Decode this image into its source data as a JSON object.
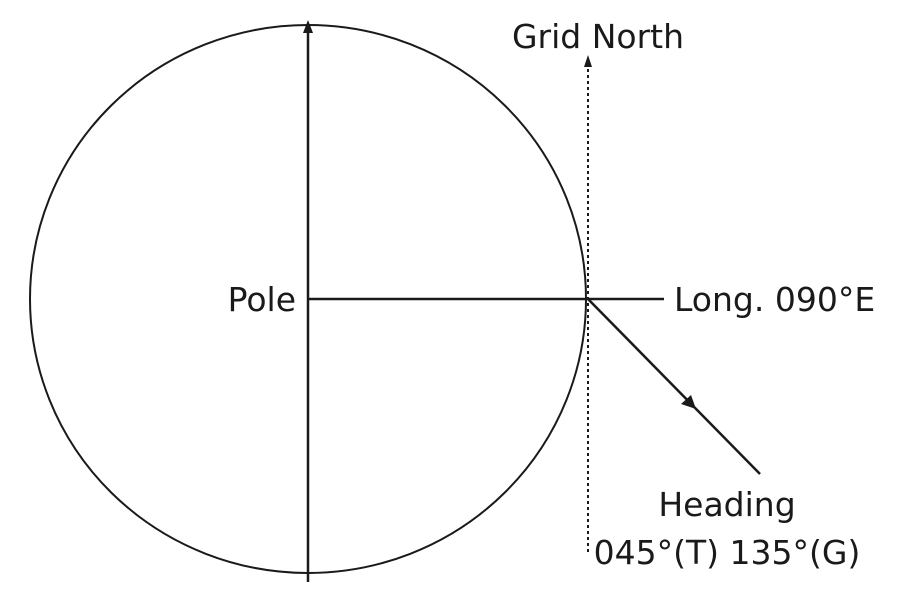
{
  "labels": {
    "grid_north": "Grid North",
    "pole": "Pole",
    "longitude": "Long. 090°E",
    "heading_title": "Heading",
    "heading_value": "045°(T) 135°(G)"
  },
  "colors": {
    "ink": "#1a1a1a",
    "background": "#ffffff"
  }
}
